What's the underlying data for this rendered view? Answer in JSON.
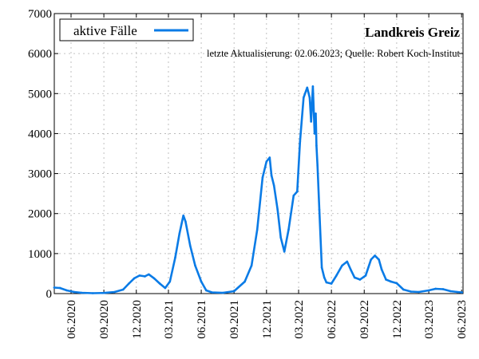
{
  "chart_data": {
    "type": "line",
    "title": "Landkreis Greiz",
    "subtitle": "letzte Aktualisierung: 02.06.2023; Quelle: Robert Koch-Institut",
    "xlabel": "",
    "ylabel": "",
    "ylim": [
      0,
      7000
    ],
    "yticks": [
      0,
      1000,
      2000,
      3000,
      4000,
      5000,
      6000,
      7000
    ],
    "xlim": [
      "2020-04-15",
      "2023-06-05"
    ],
    "xticks": [
      "06.2020",
      "09.2020",
      "12.2020",
      "03.2021",
      "06.2021",
      "09.2021",
      "12.2021",
      "03.2022",
      "06.2022",
      "09.2022",
      "12.2022",
      "03.2023",
      "06.2023"
    ],
    "xtick_dates": [
      "2020-06-01",
      "2020-09-01",
      "2020-12-01",
      "2021-03-01",
      "2021-06-01",
      "2021-09-01",
      "2021-12-01",
      "2022-03-01",
      "2022-06-01",
      "2022-09-01",
      "2022-12-01",
      "2023-03-01",
      "2023-06-01"
    ],
    "grid": true,
    "legend": {
      "position": "top-left"
    },
    "series": [
      {
        "name": "aktive Fälle",
        "color": "#0a7be6",
        "x": [
          "2020-04-15",
          "2020-05-01",
          "2020-05-20",
          "2020-06-10",
          "2020-07-01",
          "2020-08-01",
          "2020-09-01",
          "2020-10-01",
          "2020-10-25",
          "2020-11-10",
          "2020-11-25",
          "2020-12-10",
          "2020-12-25",
          "2021-01-05",
          "2021-01-20",
          "2021-02-05",
          "2021-02-20",
          "2021-03-05",
          "2021-03-20",
          "2021-04-01",
          "2021-04-12",
          "2021-04-18",
          "2021-05-01",
          "2021-05-15",
          "2021-06-01",
          "2021-06-15",
          "2021-07-01",
          "2021-08-01",
          "2021-09-01",
          "2021-10-01",
          "2021-10-20",
          "2021-11-05",
          "2021-11-20",
          "2021-12-01",
          "2021-12-10",
          "2021-12-15",
          "2021-12-22",
          "2022-01-01",
          "2022-01-10",
          "2022-01-20",
          "2022-02-01",
          "2022-02-15",
          "2022-02-25",
          "2022-03-05",
          "2022-03-15",
          "2022-03-25",
          "2022-04-01",
          "2022-04-05",
          "2022-04-10",
          "2022-04-15",
          "2022-04-18",
          "2022-04-20",
          "2022-04-23",
          "2022-04-28",
          "2022-05-05",
          "2022-05-12",
          "2022-05-18",
          "2022-06-01",
          "2022-06-15",
          "2022-07-01",
          "2022-07-15",
          "2022-07-25",
          "2022-08-05",
          "2022-08-20",
          "2022-09-05",
          "2022-09-20",
          "2022-10-01",
          "2022-10-12",
          "2022-10-20",
          "2022-11-01",
          "2022-11-15",
          "2022-12-01",
          "2022-12-20",
          "2023-01-10",
          "2023-02-01",
          "2023-03-01",
          "2023-03-20",
          "2023-04-10",
          "2023-05-01",
          "2023-05-20",
          "2023-06-02"
        ],
        "values": [
          150,
          140,
          80,
          40,
          20,
          10,
          15,
          40,
          100,
          250,
          380,
          450,
          430,
          480,
          380,
          250,
          140,
          300,
          900,
          1500,
          1950,
          1800,
          1200,
          700,
          300,
          80,
          30,
          20,
          60,
          300,
          700,
          1600,
          2900,
          3300,
          3400,
          2950,
          2700,
          2100,
          1400,
          1050,
          1600,
          2450,
          2550,
          3800,
          4900,
          5150,
          4900,
          4300,
          5180,
          4000,
          4500,
          3700,
          3200,
          2100,
          650,
          400,
          280,
          250,
          450,
          700,
          800,
          600,
          400,
          350,
          450,
          850,
          950,
          850,
          600,
          350,
          300,
          260,
          100,
          50,
          40,
          80,
          120,
          110,
          60,
          40,
          30
        ]
      }
    ]
  }
}
